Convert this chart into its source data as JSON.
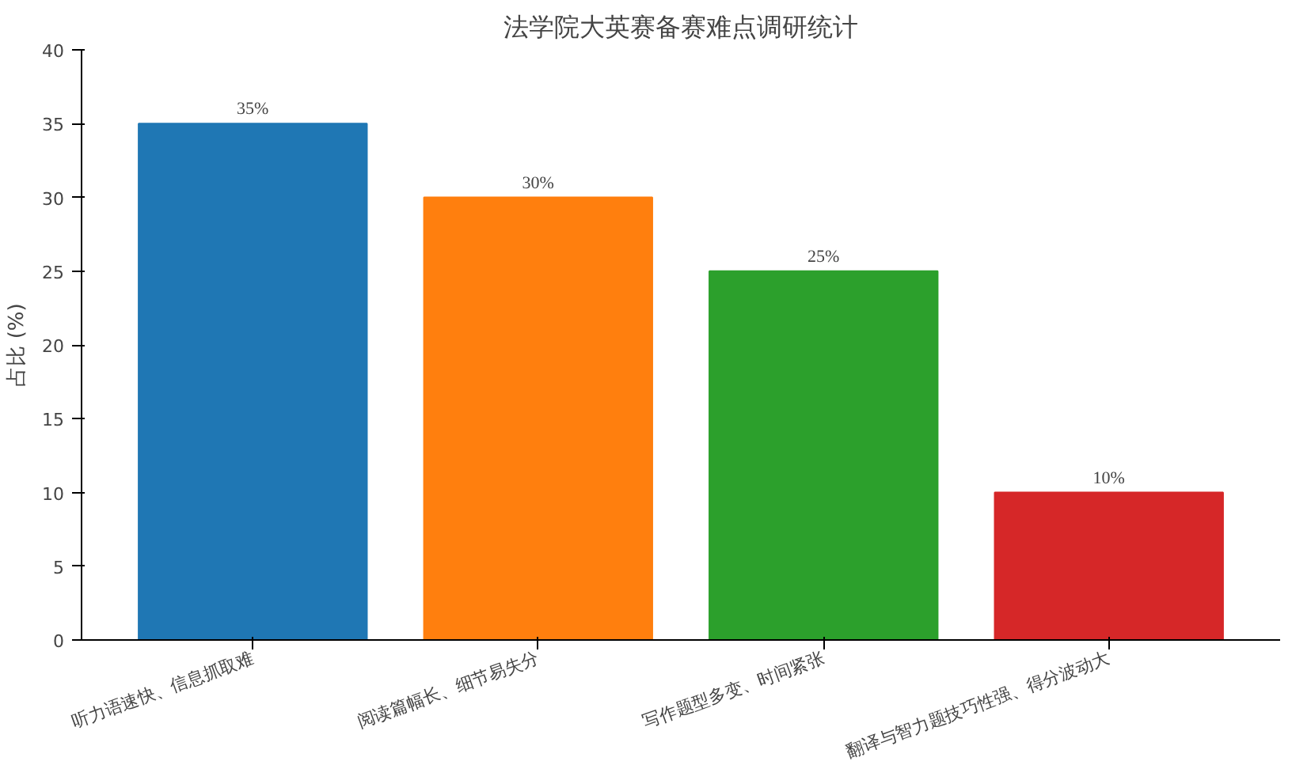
{
  "chart_data": {
    "type": "bar",
    "title": "法学院大英赛备赛难点调研统计",
    "ylabel": "占比 (%)",
    "categories": [
      "听力语速快、信息抓取难",
      "阅读篇幅长、细节易失分",
      "写作题型多变、时间紧张",
      "翻译与智力题技巧性强、得分波动大"
    ],
    "values": [
      35,
      30,
      25,
      10
    ],
    "colors": [
      "#1f77b4",
      "#ff7f0e",
      "#2ca02c",
      "#d62728"
    ],
    "value_labels": [
      "35%",
      "30%",
      "25%",
      "10%"
    ],
    "ylim": [
      0,
      40
    ],
    "yticks": [
      0,
      5,
      10,
      15,
      20,
      25,
      30,
      35,
      40
    ],
    "grid": false
  }
}
